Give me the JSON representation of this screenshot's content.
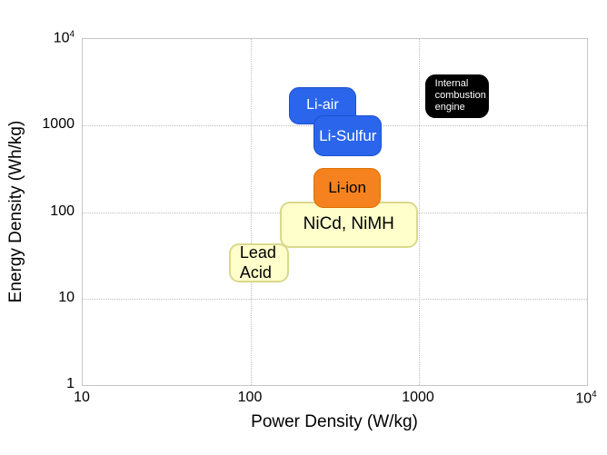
{
  "chart_data": {
    "type": "area",
    "subtype": "ragone-plot-labeled-regions",
    "title": "",
    "xlabel": "Power Density (W/kg)",
    "ylabel": "Energy Density (Wh/kg)",
    "xscale": "log",
    "yscale": "log",
    "xlim": [
      10,
      10000
    ],
    "ylim": [
      1,
      10000
    ],
    "grid": "dotted lines at major decades",
    "grid_color": "#bdbdbd",
    "frame_color": "#c6c6c6",
    "legend": "none",
    "x_ticks": [
      {
        "value": 10,
        "label": "10"
      },
      {
        "value": 100,
        "label": "100"
      },
      {
        "value": 1000,
        "label": "1000"
      },
      {
        "value": 10000,
        "label": "10^4"
      }
    ],
    "y_ticks": [
      {
        "value": 1,
        "label": "1"
      },
      {
        "value": 10,
        "label": "10"
      },
      {
        "value": 100,
        "label": "100"
      },
      {
        "value": 1000,
        "label": "1000"
      },
      {
        "value": 10000,
        "label": "10^4"
      }
    ],
    "regions": [
      {
        "name": "li-air",
        "lines": [
          "Li-air"
        ],
        "x_range_w_per_kg": [
          170,
          430
        ],
        "y_range_wh_per_kg": [
          1000,
          2700
        ],
        "fill": "#2a65ec",
        "border": "#1c50cf",
        "text_color": "#ffffff",
        "font_px": 16,
        "align": "center",
        "border_px": 1
      },
      {
        "name": "li-sulfur",
        "lines": [
          "Li-Sulfur"
        ],
        "x_range_w_per_kg": [
          240,
          610
        ],
        "y_range_wh_per_kg": [
          430,
          1280
        ],
        "fill": "#2a65ec",
        "border": "#1c50cf",
        "text_color": "#ffffff",
        "font_px": 17,
        "align": "center",
        "border_px": 1
      },
      {
        "name": "nicd-nimh",
        "lines": [
          "NiCd, NiMH"
        ],
        "x_range_w_per_kg": [
          150,
          1000
        ],
        "y_range_wh_per_kg": [
          38,
          130
        ],
        "fill": "#ffffcc",
        "border": "#d9d98c",
        "text_color": "#000000",
        "font_px": 19,
        "align": "center",
        "border_px": 2
      },
      {
        "name": "lead-acid",
        "lines": [
          "Lead",
          "Acid"
        ],
        "x_range_w_per_kg": [
          75,
          170
        ],
        "y_range_wh_per_kg": [
          15,
          42
        ],
        "fill": "#ffffcc",
        "border": "#d9d98c",
        "text_color": "#000000",
        "font_px": 18,
        "align": "left",
        "border_px": 2
      },
      {
        "name": "li-ion",
        "lines": [
          "Li-ion"
        ],
        "x_range_w_per_kg": [
          240,
          600
        ],
        "y_range_wh_per_kg": [
          110,
          315
        ],
        "fill": "#f5821f",
        "border": "#dd6f00",
        "text_color": "#000000",
        "font_px": 17,
        "align": "center",
        "border_px": 1
      },
      {
        "name": "internal-combustion-engine",
        "lines": [
          "Internal",
          "combustion",
          "engine"
        ],
        "x_range_w_per_kg": [
          1100,
          2650
        ],
        "y_range_wh_per_kg": [
          1200,
          3800
        ],
        "fill": "#000000",
        "border": "#000000",
        "text_color": "#ffffff",
        "font_px": 11,
        "align": "left",
        "border_px": 1
      }
    ]
  }
}
